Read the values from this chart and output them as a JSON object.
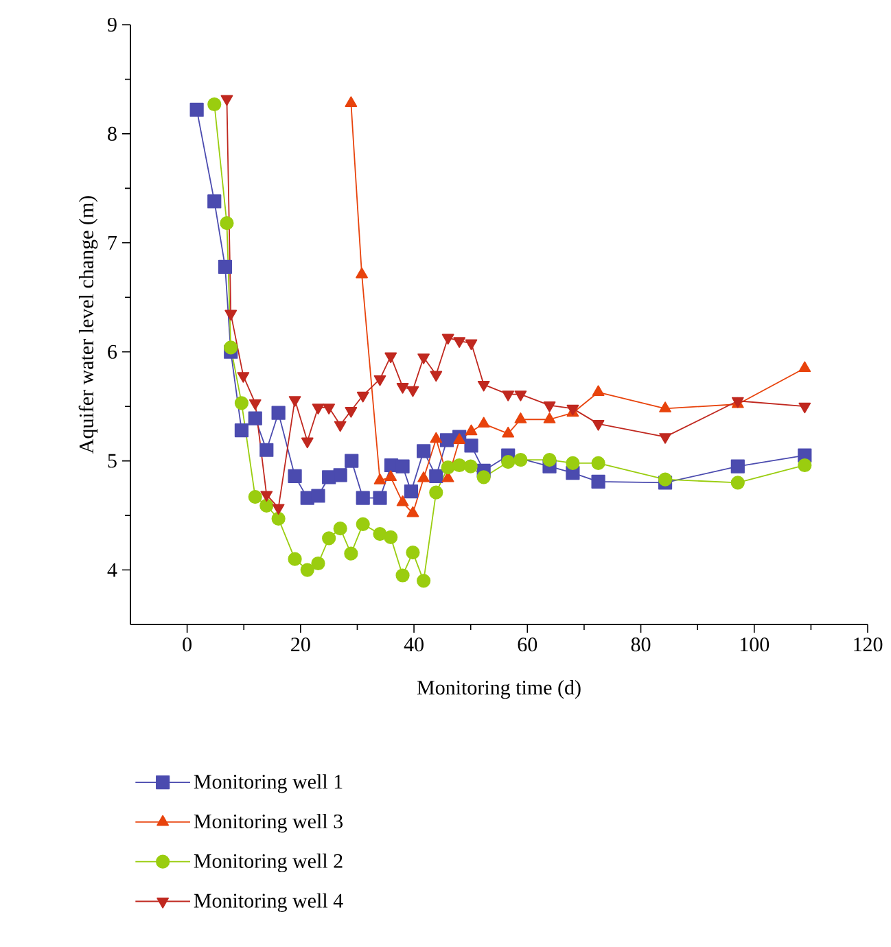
{
  "chart_data": {
    "type": "line",
    "xlabel": "Monitoring time (d)",
    "ylabel": "Aquifer water level change (m)",
    "xlim": [
      -10,
      120
    ],
    "ylim": [
      3.5,
      9
    ],
    "xticks": [
      0,
      20,
      40,
      60,
      80,
      100,
      120
    ],
    "yticks": [
      4,
      5,
      6,
      7,
      8,
      9
    ],
    "grid": false,
    "legend": "bottom",
    "line_style": "solid",
    "series": [
      {
        "name": "Monitoring well 1",
        "color": "#4b4baf",
        "marker": "square",
        "x": [
          1.7,
          4.8,
          6.7,
          7.7,
          9.6,
          12,
          14,
          16.1,
          19,
          21.2,
          23.1,
          25,
          27,
          29,
          31,
          34,
          36,
          38,
          39.5,
          41.7,
          43.9,
          45.8,
          48,
          50.1,
          52.3,
          56.6,
          63.9,
          68,
          72.5,
          84.3,
          97.1,
          108.9
        ],
        "values": [
          8.22,
          7.38,
          6.78,
          6.0,
          5.28,
          5.39,
          5.1,
          5.44,
          4.86,
          4.66,
          4.68,
          4.85,
          4.87,
          5.0,
          4.66,
          4.66,
          4.96,
          4.95,
          4.72,
          5.09,
          4.86,
          5.19,
          5.22,
          5.14,
          4.91,
          5.05,
          4.95,
          4.89,
          4.81,
          4.8,
          4.95,
          5.05
        ]
      },
      {
        "name": "Monitoring well 3",
        "color": "#e8430c",
        "marker": "triangle",
        "x": [
          28.9,
          30.8,
          34,
          35.9,
          38,
          39.8,
          41.7,
          43.9,
          46,
          48,
          50.1,
          52.3,
          56.6,
          58.8,
          63.9,
          68,
          72.5,
          84.3,
          97.1,
          108.9
        ],
        "values": [
          8.28,
          6.71,
          4.82,
          4.85,
          4.62,
          4.52,
          4.84,
          5.2,
          4.84,
          5.19,
          5.27,
          5.34,
          5.25,
          5.38,
          5.38,
          5.44,
          5.63,
          5.48,
          5.52,
          5.85
        ]
      },
      {
        "name": "Monitoring well 2",
        "color": "#9acd0f",
        "marker": "circle",
        "x": [
          4.8,
          7,
          7.7,
          9.6,
          12,
          14,
          16.1,
          19,
          21.2,
          23.1,
          25,
          27,
          28.9,
          31,
          34,
          35.9,
          38,
          39.8,
          41.7,
          43.9,
          46,
          48,
          50,
          52.3,
          56.6,
          58.8,
          63.9,
          68,
          72.5,
          84.3,
          97.1,
          108.9
        ],
        "values": [
          8.27,
          7.18,
          6.04,
          5.53,
          4.67,
          4.59,
          4.47,
          4.1,
          4.0,
          4.06,
          4.29,
          4.38,
          4.15,
          4.42,
          4.33,
          4.3,
          3.95,
          4.16,
          3.9,
          4.71,
          4.94,
          4.96,
          4.95,
          4.85,
          4.99,
          5.01,
          5.01,
          4.98,
          4.98,
          4.83,
          4.8,
          4.96
        ]
      },
      {
        "name": "Monitoring well 4",
        "color": "#c0281f",
        "marker": "triangle-down",
        "x": [
          7,
          7.7,
          9.9,
          12,
          14,
          16.1,
          19,
          21.2,
          23.1,
          25,
          27,
          28.9,
          31,
          34,
          35.9,
          38,
          39.8,
          41.7,
          43.9,
          46,
          48,
          50.1,
          52.3,
          56.6,
          58.8,
          63.9,
          68,
          72.5,
          84.3,
          97.1,
          108.9
        ],
        "values": [
          8.32,
          6.35,
          5.78,
          5.53,
          4.69,
          4.57,
          5.56,
          5.18,
          5.49,
          5.49,
          5.33,
          5.46,
          5.6,
          5.75,
          5.96,
          5.68,
          5.65,
          5.95,
          5.79,
          6.13,
          6.1,
          6.08,
          5.7,
          5.61,
          5.61,
          5.51,
          5.48,
          5.34,
          5.22,
          5.55,
          5.5
        ]
      }
    ]
  }
}
